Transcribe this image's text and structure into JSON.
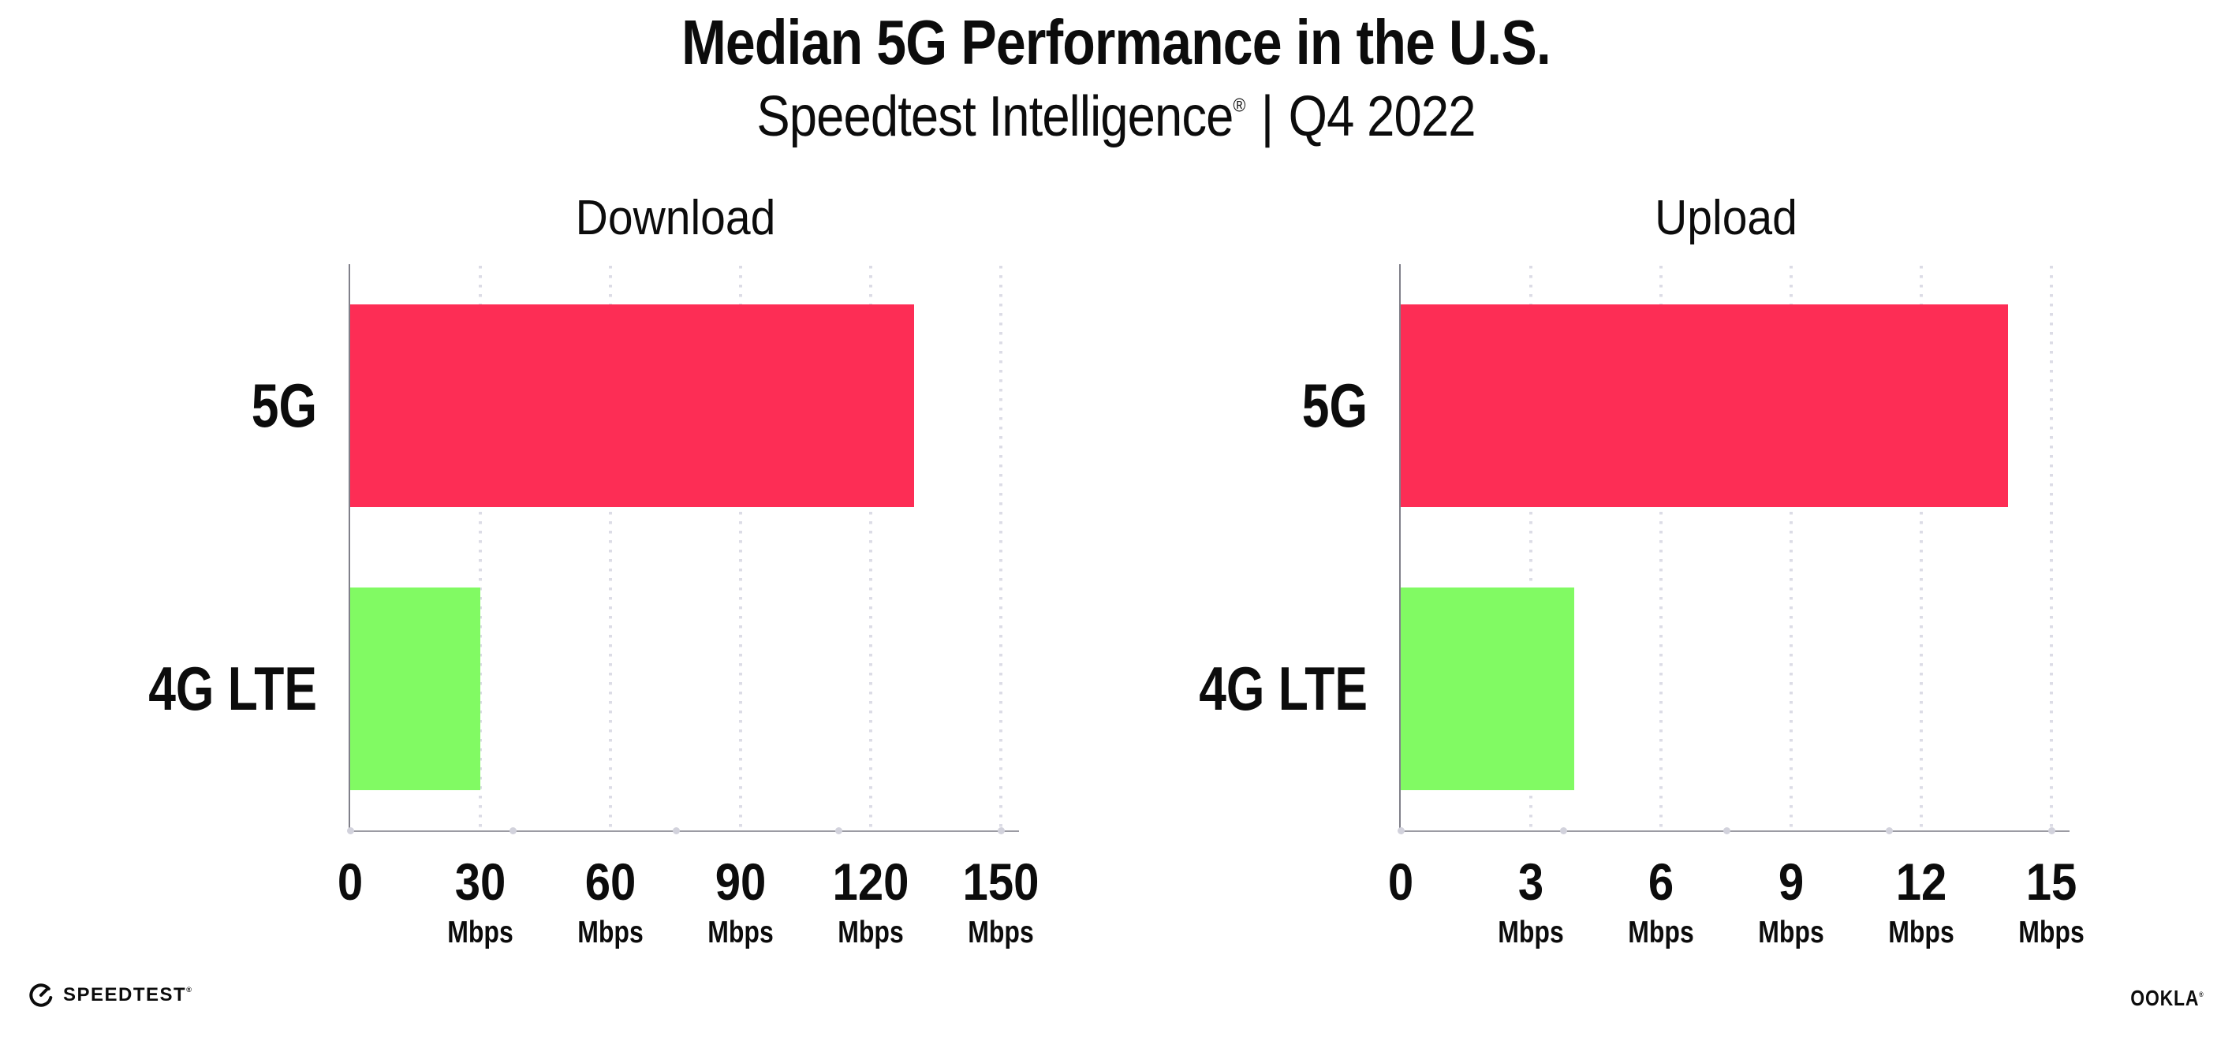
{
  "header": {
    "title": "Median 5G Performance in the U.S.",
    "subtitle": {
      "brand": "Speedtest Intelligence",
      "reg": "®",
      "separator": "|",
      "period": "Q4 2022"
    }
  },
  "colors": {
    "bar_5g": "#fd2d55",
    "bar_4g_lte": "#81fa63",
    "gridline": "#dcdce6",
    "axis_line": "#9b9ba3",
    "axis_dot": "#d2d2dc",
    "text": "#0c0c0c",
    "background": "#ffffff"
  },
  "chart_data": [
    {
      "type": "bar",
      "orientation": "horizontal",
      "title": "Download",
      "categories": [
        "5G",
        "4G LTE"
      ],
      "values": [
        130,
        30
      ],
      "unit": "Mbps",
      "xlim": [
        0,
        150
      ],
      "xticks": [
        0,
        30,
        60,
        90,
        120,
        150
      ],
      "bar_colors": [
        "#fd2d55",
        "#81fa63"
      ],
      "grid": "dotted-vertical",
      "legend": "none",
      "xlabel": "",
      "ylabel": ""
    },
    {
      "type": "bar",
      "orientation": "horizontal",
      "title": "Upload",
      "categories": [
        "5G",
        "4G LTE"
      ],
      "values": [
        14,
        4
      ],
      "unit": "Mbps",
      "xlim": [
        0,
        15
      ],
      "xticks": [
        0,
        3,
        6,
        9,
        12,
        15
      ],
      "bar_colors": [
        "#fd2d55",
        "#81fa63"
      ],
      "grid": "dotted-vertical",
      "legend": "none",
      "xlabel": "",
      "ylabel": ""
    }
  ],
  "footer": {
    "speedtest": {
      "label": "SPEEDTEST",
      "mark": "®"
    },
    "ookla": {
      "label": "OOKLA",
      "mark": "®"
    }
  }
}
